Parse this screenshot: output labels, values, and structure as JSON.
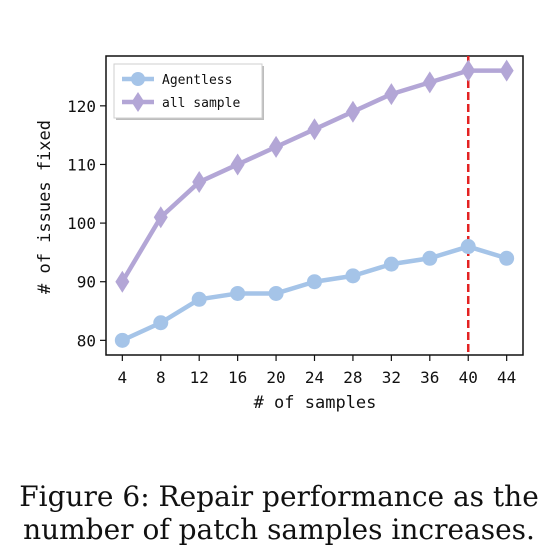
{
  "chart_data": {
    "type": "line",
    "title": "",
    "xlabel": "# of samples",
    "ylabel": "# of issues fixed",
    "x": [
      4,
      8,
      12,
      16,
      20,
      24,
      28,
      32,
      36,
      40,
      44
    ],
    "xlim": [
      2.3,
      45.7
    ],
    "ylim": [
      77.5,
      128.5
    ],
    "x_ticks": [
      "4",
      "8",
      "12",
      "16",
      "20",
      "24",
      "28",
      "32",
      "36",
      "40",
      "44"
    ],
    "y_ticks": [
      "80",
      "90",
      "100",
      "110",
      "120"
    ],
    "grid": false,
    "legend_position": "top-left",
    "series": [
      {
        "name": "Agentless",
        "values": [
          80,
          83,
          87,
          88,
          88,
          90,
          91,
          93,
          94,
          96,
          94
        ],
        "color": "#a5c4e8",
        "marker": "circle"
      },
      {
        "name": "all sample",
        "values": [
          90,
          101,
          107,
          110,
          113,
          116,
          119,
          122,
          124,
          126,
          126
        ],
        "color": "#b3a6d6",
        "marker": "diamond"
      }
    ],
    "vline": {
      "x": 40,
      "color": "#e32222",
      "style": "dashed"
    }
  },
  "caption": "Figure 6: Repair performance as the number of patch samples increases."
}
